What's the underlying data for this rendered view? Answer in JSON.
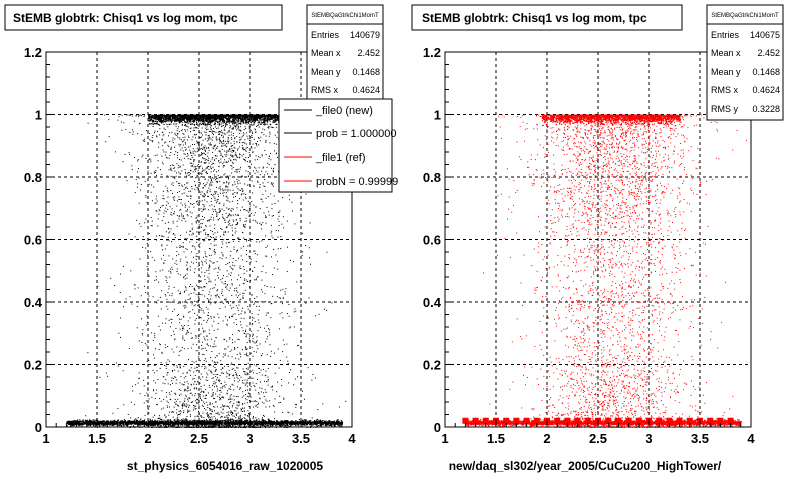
{
  "colors": {
    "background": "#ffffff",
    "frame": "#000000",
    "grid": "#000000",
    "new_markers": "#000000",
    "ref_markers": "#ff0000"
  },
  "panels": [
    {
      "title": "StEMB globtrk: Chisq1 vs log mom, tpc",
      "xlabel": "st_physics_6054016_raw_1020005",
      "marker_color": "#000000",
      "stats": {
        "name": "StEMBQaGtrkChi1MomT",
        "rows": [
          {
            "label": "Entries",
            "value": "140679"
          },
          {
            "label": "Mean x",
            "value": "2.452"
          },
          {
            "label": "Mean y",
            "value": "0.1468"
          },
          {
            "label": "RMS x",
            "value": "0.4624"
          }
        ]
      },
      "legend": {
        "entries": [
          {
            "label": "_file0 (new)",
            "color": "#000000"
          },
          {
            "label": "prob = 1.000000",
            "color": "#000000"
          },
          {
            "label": "_file1 (ref)",
            "color": "#ff0000"
          },
          {
            "label": "probN = 0.99999",
            "color": "#ff0000"
          }
        ]
      }
    },
    {
      "title": "StEMB globtrk: Chisq1 vs log mom, tpc",
      "xlabel": "new/daq_sl302/year_2005/CuCu200_HighTower/",
      "marker_color": "#ff0000",
      "stats": {
        "name": "StEMBQaGtrkChi1MomT",
        "rows": [
          {
            "label": "Entries",
            "value": "140675"
          },
          {
            "label": "Mean x",
            "value": "2.452"
          },
          {
            "label": "Mean y",
            "value": "0.1468"
          },
          {
            "label": "RMS x",
            "value": "0.4624"
          },
          {
            "label": "RMS y",
            "value": "0.3228"
          }
        ]
      }
    }
  ],
  "chart_data": [
    {
      "type": "scatter",
      "title": "StEMB globtrk: Chisq1 vs log mom, tpc",
      "xlabel": "st_physics_6054016_raw_1020005",
      "xlim": [
        1,
        4
      ],
      "ylim": [
        0,
        1.2
      ],
      "x_ticks": [
        "1",
        "1.5",
        "2",
        "2.5",
        "3",
        "3.5",
        "4"
      ],
      "y_ticks": [
        "0",
        "0.2",
        "0.4",
        "0.6",
        "0.8",
        "1",
        "1.2"
      ],
      "grid": true,
      "legend_position": "top-right",
      "series": [
        {
          "name": "_file0 (new)",
          "color": "#000000",
          "x_range": [
            1.15,
            3.95
          ],
          "bands": [
            {
              "y": 0.015,
              "description": "dense band near y=0",
              "x_range": [
                1.2,
                3.9
              ]
            },
            {
              "y": 1.0,
              "description": "dense band near y=1",
              "x_range": [
                2.0,
                3.3
              ]
            }
          ],
          "entries": 140679,
          "mean_x": 2.452,
          "mean_y": 0.1468,
          "rms_x": 0.4624
        }
      ]
    },
    {
      "type": "scatter",
      "title": "StEMB globtrk: Chisq1 vs log mom, tpc",
      "xlabel": "new/daq_sl302/year_2005/CuCu200_HighTower/",
      "xlim": [
        1,
        4
      ],
      "ylim": [
        0,
        1.2
      ],
      "x_ticks": [
        "1",
        "1.5",
        "2",
        "2.5",
        "3",
        "3.5",
        "4"
      ],
      "y_ticks": [
        "0",
        "0.2",
        "0.4",
        "0.6",
        "0.8",
        "1",
        "1.2"
      ],
      "grid": true,
      "series": [
        {
          "name": "_file1 (ref)",
          "color": "#ff0000",
          "x_range": [
            1.15,
            3.95
          ],
          "bands": [
            {
              "y": 0.015,
              "description": "dense band near y=0",
              "x_range": [
                1.2,
                3.9
              ]
            },
            {
              "y": 1.0,
              "description": "dense band near y=1",
              "x_range": [
                1.95,
                3.3
              ]
            }
          ],
          "entries": 140675,
          "mean_x": 2.452,
          "mean_y": 0.1468,
          "rms_x": 0.4624,
          "rms_y": 0.3228
        }
      ]
    }
  ]
}
